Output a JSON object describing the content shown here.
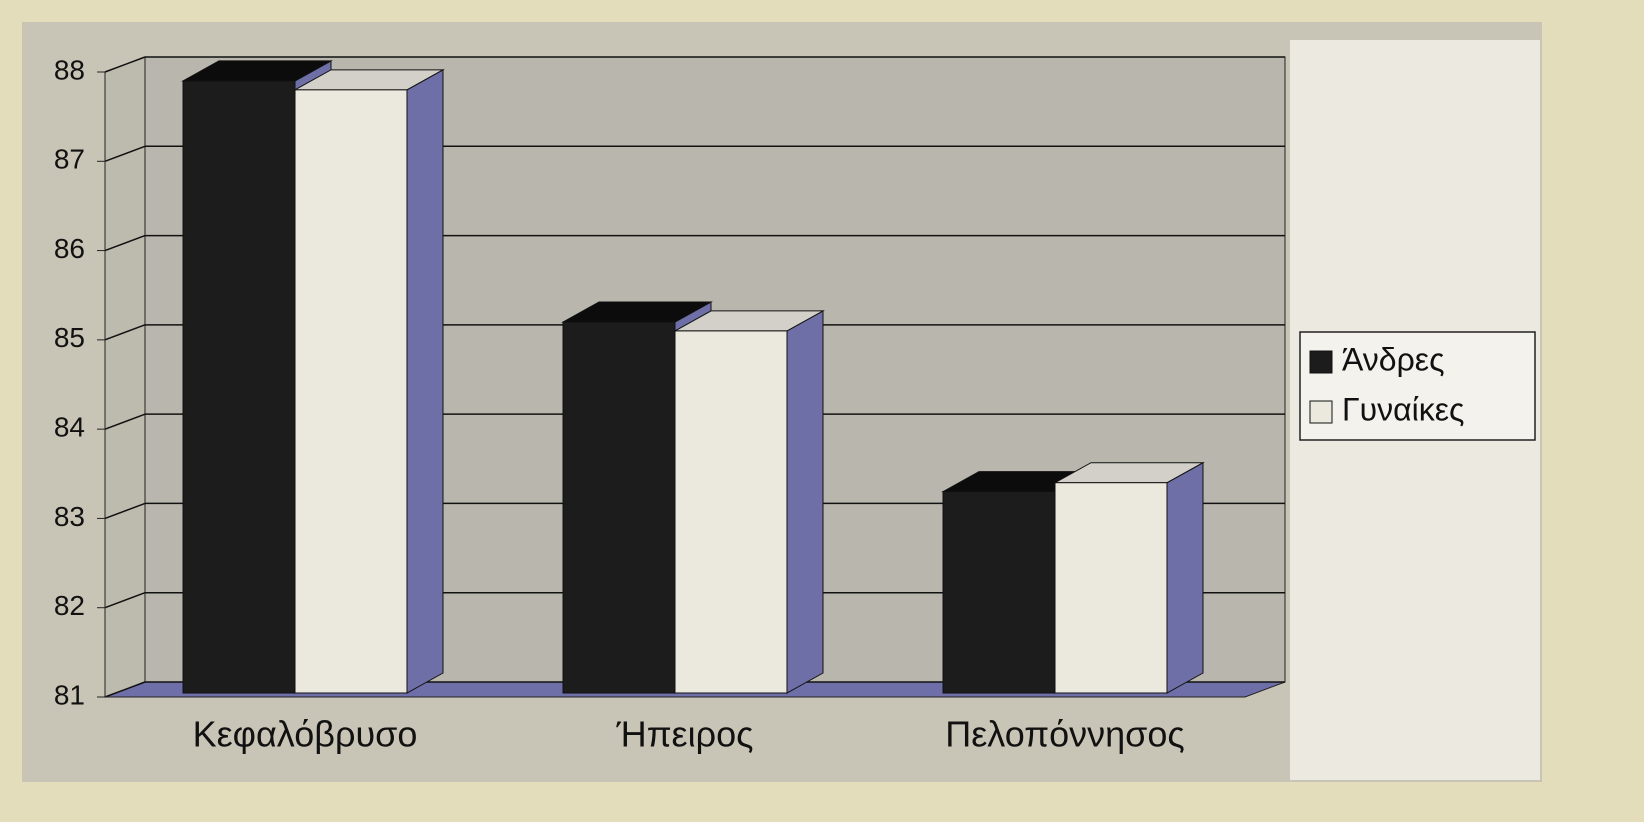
{
  "chart_data": {
    "type": "bar3d",
    "categories": [
      "Κεφαλόβρυσο",
      "Ήπειρος",
      "Πελοπόννησος"
    ],
    "series": [
      {
        "name": "Άνδρες",
        "color": "#1c1c1c",
        "values": [
          87.9,
          85.2,
          83.3
        ]
      },
      {
        "name": "Γυναίκες",
        "color": "#ebe8de",
        "values": [
          87.8,
          85.1,
          83.4
        ]
      }
    ],
    "ylim": [
      81,
      88
    ],
    "yticks": [
      81,
      82,
      83,
      84,
      85,
      86,
      87,
      88
    ],
    "grid": true,
    "legend": "right"
  }
}
